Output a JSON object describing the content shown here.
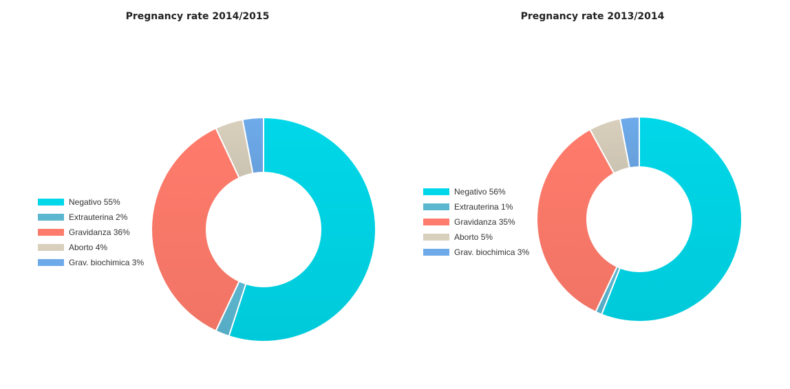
{
  "chart_data": [
    {
      "type": "pie",
      "title": "Pregnancy rate 2014/2015",
      "categories": [
        "Negativo",
        "Extrauterina",
        "Gravidanza",
        "Aborto",
        "Grav. biochimica"
      ],
      "values": [
        55,
        2,
        36,
        4,
        3
      ],
      "legend_labels": [
        "Negativo 55%",
        "Extrauterina 2%",
        "Gravidanza 36%",
        "Aborto 4%",
        "Grav. biochimica 3%"
      ],
      "colors": [
        "#00d7e8",
        "#5bb6cf",
        "#ff7b6b",
        "#d8cfbc",
        "#6eaaea"
      ],
      "legend_position": "left"
    },
    {
      "type": "pie",
      "title": "Pregnancy rate 2013/2014",
      "categories": [
        "Negativo",
        "Extrauterina",
        "Gravidanza",
        "Aborto",
        "Grav. biochimica"
      ],
      "values": [
        56,
        1,
        35,
        5,
        3
      ],
      "legend_labels": [
        "Negativo 56%",
        "Extrauterina 1%",
        "Gravidanza 35%",
        "Aborto 5%",
        "Grav. biochimica 3%"
      ],
      "colors": [
        "#00d7e8",
        "#5bb6cf",
        "#ff7b6b",
        "#d8cfbc",
        "#6eaaea"
      ],
      "legend_position": "left"
    }
  ]
}
